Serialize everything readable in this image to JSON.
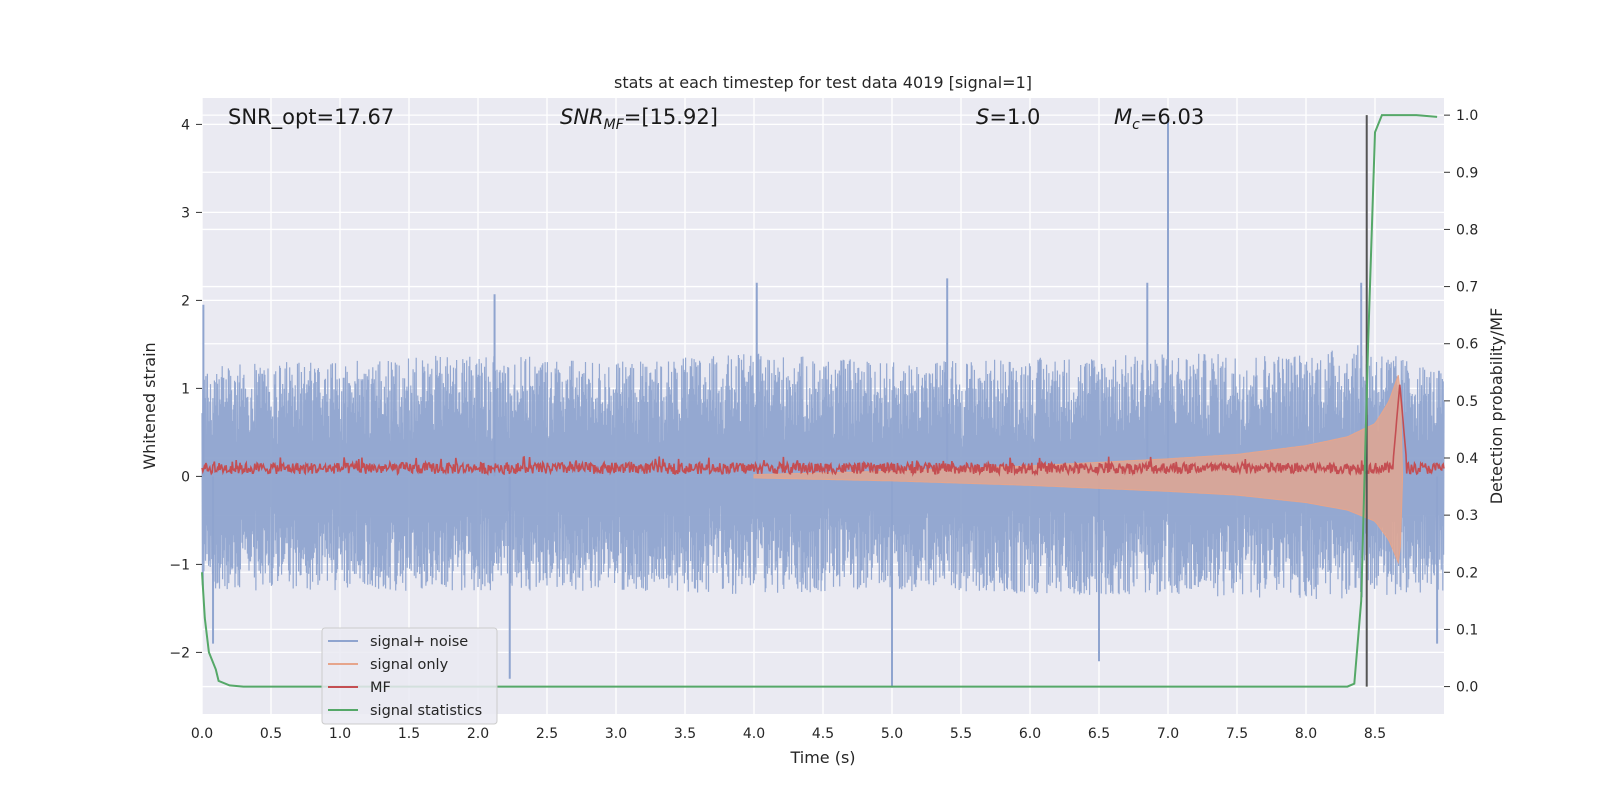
{
  "chart_data": {
    "type": "line",
    "title": "stats at each timestep for test data 4019 [signal=1]",
    "xlabel": "Time (s)",
    "ylabel": "Whitened strain",
    "y2label": "Detection probability/MF",
    "xlim": [
      0,
      9.0
    ],
    "ylim": [
      -2.7,
      4.3
    ],
    "y2lim": [
      -0.048,
      1.03
    ],
    "x_ticks": [
      0.0,
      0.5,
      1.0,
      1.5,
      2.0,
      2.5,
      3.0,
      3.5,
      4.0,
      4.5,
      5.0,
      5.5,
      6.0,
      6.5,
      7.0,
      7.5,
      8.0,
      8.5
    ],
    "x_tick_labels": [
      "0.0",
      "0.5",
      "1.0",
      "1.5",
      "2.0",
      "2.5",
      "3.0",
      "3.5",
      "4.0",
      "4.5",
      "5.0",
      "5.5",
      "6.0",
      "6.5",
      "7.0",
      "7.5",
      "8.0",
      "8.5"
    ],
    "y_ticks": [
      -2,
      -1,
      0,
      1,
      2,
      3,
      4
    ],
    "y_tick_labels": [
      "−2",
      "−1",
      "0",
      "1",
      "2",
      "3",
      "4"
    ],
    "y2_ticks": [
      0.0,
      0.1,
      0.2,
      0.3,
      0.4,
      0.5,
      0.6,
      0.7,
      0.8,
      0.9,
      1.0
    ],
    "y2_tick_labels": [
      "0.0",
      "0.1",
      "0.2",
      "0.3",
      "0.4",
      "0.5",
      "0.6",
      "0.7",
      "0.8",
      "0.9",
      "1.0"
    ],
    "annotations": {
      "snr_opt": "SNR_opt=17.67",
      "snr_mf_base": "SNR",
      "snr_mf_sub": "MF",
      "snr_mf_rest": "=[15.92]",
      "s_base": "S",
      "s_rest": "=1.0",
      "mc_base": "M",
      "mc_sub": "c",
      "mc_rest": "=6.03"
    },
    "series": [
      {
        "name": "signal+ noise",
        "color": "#8fa4cf",
        "axis": "left",
        "description": "noisy whitened strain, roughly ±1 with occasional spikes",
        "envelope_x": [
          0,
          1,
          2,
          3,
          4,
          5,
          6,
          7,
          8,
          8.4,
          9
        ],
        "envelope_upper": [
          1.3,
          1.3,
          1.4,
          1.3,
          1.4,
          1.3,
          1.35,
          1.4,
          1.4,
          1.5,
          1.2
        ],
        "envelope_lower": [
          -1.3,
          -1.3,
          -1.3,
          -1.3,
          -1.35,
          -1.3,
          -1.35,
          -1.35,
          -1.4,
          -1.4,
          -1.3
        ],
        "spikes": [
          {
            "x": 0.01,
            "y": 1.95
          },
          {
            "x": 2.12,
            "y": 2.07
          },
          {
            "x": 4.02,
            "y": 2.2
          },
          {
            "x": 5.4,
            "y": 2.25
          },
          {
            "x": 6.85,
            "y": 2.2
          },
          {
            "x": 7.0,
            "y": 4.05
          },
          {
            "x": 8.4,
            "y": 2.2
          },
          {
            "x": 5.0,
            "y": -2.4
          },
          {
            "x": 2.23,
            "y": -2.3
          },
          {
            "x": 0.08,
            "y": -1.9
          },
          {
            "x": 6.5,
            "y": -2.1
          },
          {
            "x": 8.95,
            "y": -1.9
          }
        ]
      },
      {
        "name": "signal only",
        "color": "#e6a58c",
        "axis": "left",
        "description": "chirp signal, amplitude grows from ~0 toward merger near 8.7 s",
        "envelope_x": [
          4.0,
          5.0,
          6.0,
          7.0,
          7.5,
          8.0,
          8.3,
          8.5,
          8.6,
          8.68,
          8.7
        ],
        "envelope_amp": [
          0.02,
          0.06,
          0.12,
          0.2,
          0.25,
          0.35,
          0.45,
          0.6,
          0.85,
          1.2,
          0.0
        ]
      },
      {
        "name": "MF",
        "color": "#c44e52",
        "axis": "right",
        "description": "matched-filter output, baseline ~0.38 with merger peak ~0.53 at 8.68 s",
        "baseline": 0.382,
        "peak_x": 8.68,
        "peak_y": 0.53
      },
      {
        "name": "signal statistics",
        "color": "#55a868",
        "axis": "right",
        "x": [
          0.0,
          0.02,
          0.05,
          0.1,
          0.12,
          0.2,
          0.3,
          1.0,
          2.0,
          3.0,
          4.0,
          5.0,
          6.0,
          7.0,
          8.0,
          8.3,
          8.35,
          8.4,
          8.45,
          8.5,
          8.55,
          8.6,
          8.8,
          8.95
        ],
        "y": [
          0.2,
          0.12,
          0.06,
          0.03,
          0.01,
          0.002,
          0.0,
          0.0,
          0.0,
          0.0,
          0.0,
          0.0,
          0.0,
          0.0,
          0.0,
          0.0,
          0.005,
          0.15,
          0.6,
          0.97,
          1.0,
          1.0,
          1.0,
          0.997
        ]
      }
    ],
    "vertical_line": {
      "x": 8.44,
      "color": "#555555"
    },
    "legend": {
      "placement": "lower-left",
      "entries": [
        {
          "label": "signal+ noise",
          "color": "#8fa4cf"
        },
        {
          "label": "signal only",
          "color": "#e6a58c"
        },
        {
          "label": "MF",
          "color": "#c44e52"
        },
        {
          "label": "signal statistics",
          "color": "#55a868"
        }
      ]
    },
    "grid": true,
    "background": "#eaeaf2"
  }
}
